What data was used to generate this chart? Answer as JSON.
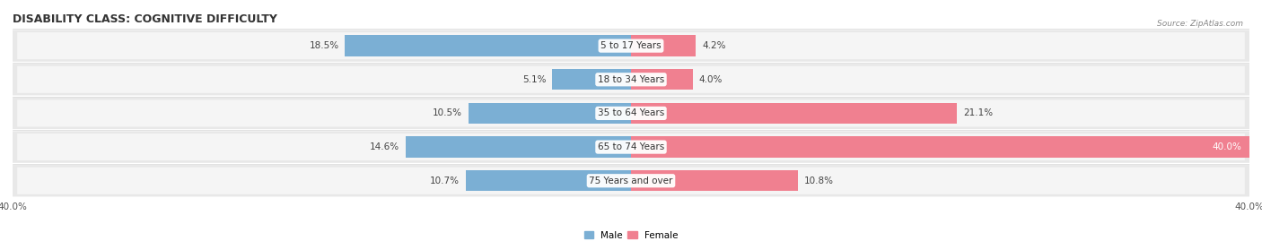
{
  "title": "DISABILITY CLASS: COGNITIVE DIFFICULTY",
  "source": "Source: ZipAtlas.com",
  "categories": [
    "5 to 17 Years",
    "18 to 34 Years",
    "35 to 64 Years",
    "65 to 74 Years",
    "75 Years and over"
  ],
  "male_values": [
    18.5,
    5.1,
    10.5,
    14.6,
    10.7
  ],
  "female_values": [
    4.2,
    4.0,
    21.1,
    40.0,
    10.8
  ],
  "male_color": "#7bafd4",
  "female_color": "#f08090",
  "axis_max": 40.0,
  "title_fontsize": 9,
  "label_fontsize": 7.5,
  "tick_fontsize": 7.5,
  "background_color": "#ffffff",
  "row_bg_color": "#e8e8e8",
  "row_inner_bg": "#f5f5f5"
}
